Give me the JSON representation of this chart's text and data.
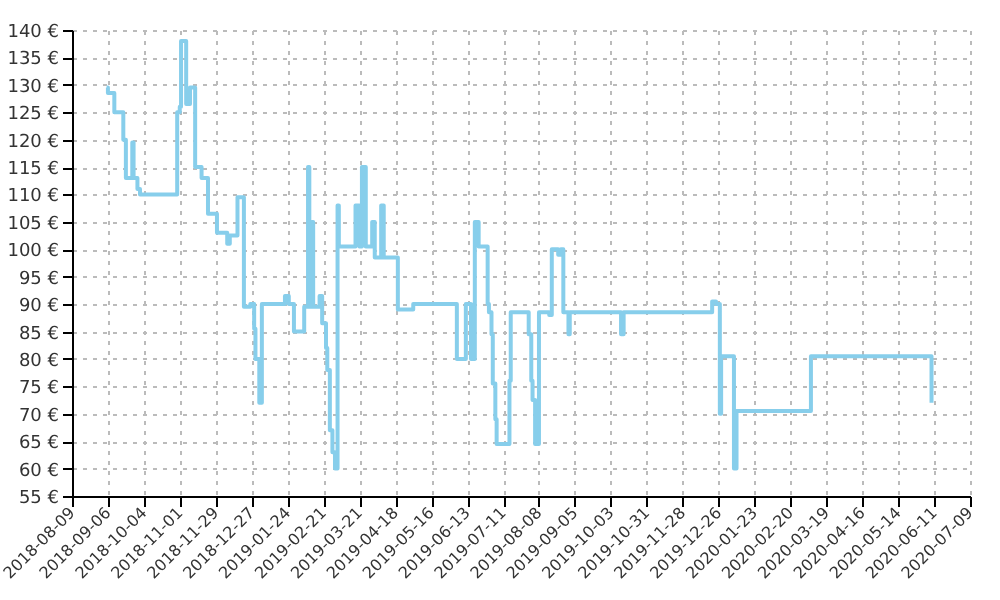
{
  "chart_data": {
    "type": "step",
    "grid": true,
    "marker": "none",
    "x": [
      "2018-09-05",
      "2018-09-06",
      "2018-09-11",
      "2018-09-18",
      "2018-09-20",
      "2018-09-25",
      "2018-09-26",
      "2018-09-29",
      "2018-10-01",
      "2018-10-30",
      "2018-11-01",
      "2018-11-02",
      "2018-11-06",
      "2018-11-09",
      "2018-11-13",
      "2018-11-18",
      "2018-11-23",
      "2018-11-30",
      "2018-12-08",
      "2018-12-10",
      "2018-12-16",
      "2018-12-21",
      "2018-12-26",
      "2018-12-29",
      "2018-12-30",
      "2019-01-02",
      "2019-01-04",
      "2019-01-22",
      "2019-01-25",
      "2019-01-29",
      "2019-02-06",
      "2019-02-09",
      "2019-02-10",
      "2019-02-12",
      "2019-02-13",
      "2019-02-18",
      "2019-02-20",
      "2019-02-23",
      "2019-02-24",
      "2019-02-26",
      "2019-02-28",
      "2019-03-02",
      "2019-03-04",
      "2019-03-05",
      "2019-03-18",
      "2019-03-21",
      "2019-03-23",
      "2019-03-26",
      "2019-03-31",
      "2019-04-02",
      "2019-04-07",
      "2019-04-09",
      "2019-04-20",
      "2019-05-02",
      "2019-06-05",
      "2019-06-12",
      "2019-06-16",
      "2019-06-19",
      "2019-06-22",
      "2019-06-29",
      "2019-06-30",
      "2019-07-02",
      "2019-07-03",
      "2019-07-05",
      "2019-07-06",
      "2019-07-16",
      "2019-07-17",
      "2019-07-31",
      "2019-08-02",
      "2019-08-03",
      "2019-08-05",
      "2019-08-08",
      "2019-08-16",
      "2019-08-18",
      "2019-08-23",
      "2019-08-25",
      "2019-08-27",
      "2019-08-31",
      "2019-09-01",
      "2019-10-11",
      "2019-10-13",
      "2019-12-21",
      "2019-12-24",
      "2019-12-27",
      "2019-12-28",
      "2020-01-07",
      "2020-01-09",
      "2020-03-07",
      "2020-06-09"
    ],
    "series": [
      {
        "color": "#87ceeb",
        "values": [
          129.5,
          128.5,
          125,
          120,
          113,
          119.5,
          113,
          111,
          110,
          125,
          126,
          138,
          126.5,
          129.5,
          115,
          113,
          106.5,
          103,
          101,
          102.5,
          109.5,
          89.5,
          90,
          85.5,
          80,
          72,
          90,
          91.5,
          90,
          85,
          89.5,
          115,
          89.5,
          105,
          89.5,
          91.5,
          86.5,
          82,
          78,
          67,
          63,
          60,
          108,
          100.5,
          108,
          100.5,
          115,
          100.5,
          105,
          98.5,
          108,
          98.5,
          89,
          90,
          80,
          90,
          80,
          105,
          100.5,
          90,
          88.5,
          84.5,
          75.5,
          69,
          64.5,
          76,
          88.5,
          84.5,
          76,
          72.5,
          64.5,
          88.5,
          88,
          100,
          99,
          100,
          88.5,
          84.5,
          88.5,
          84.5,
          88.5,
          90.5,
          90,
          70,
          80.5,
          60,
          70.5,
          80.5,
          72
        ]
      }
    ],
    "xlim": [
      "2018-08-09",
      "2020-07-09"
    ],
    "xticks": [
      "2018-08-09",
      "2018-09-06",
      "2018-10-04",
      "2018-11-01",
      "2018-11-29",
      "2018-12-27",
      "2019-01-24",
      "2019-02-21",
      "2019-03-21",
      "2019-04-18",
      "2019-05-16",
      "2019-06-13",
      "2019-07-11",
      "2019-08-08",
      "2019-09-05",
      "2019-10-03",
      "2019-10-31",
      "2019-11-28",
      "2019-12-26",
      "2020-01-23",
      "2020-02-20",
      "2020-03-19",
      "2020-04-16",
      "2020-05-14",
      "2020-06-11",
      "2020-07-09"
    ],
    "ylim": [
      55,
      140
    ],
    "yticks": [
      {
        "value": 55,
        "label": "55 €"
      },
      {
        "value": 60,
        "label": "60 €"
      },
      {
        "value": 65,
        "label": "65 €"
      },
      {
        "value": 70,
        "label": "70 €"
      },
      {
        "value": 75,
        "label": "75 €"
      },
      {
        "value": 80,
        "label": "80 €"
      },
      {
        "value": 85,
        "label": "85 €"
      },
      {
        "value": 90,
        "label": "90 €"
      },
      {
        "value": 95,
        "label": "95 €"
      },
      {
        "value": 100,
        "label": "100 €"
      },
      {
        "value": 105,
        "label": "105 €"
      },
      {
        "value": 110,
        "label": "110 €"
      },
      {
        "value": 115,
        "label": "115 €"
      },
      {
        "value": 120,
        "label": "120 €"
      },
      {
        "value": 125,
        "label": "125 €"
      },
      {
        "value": 130,
        "label": "130 €"
      },
      {
        "value": 135,
        "label": "135 €"
      },
      {
        "value": 140,
        "label": "140 €"
      }
    ]
  }
}
